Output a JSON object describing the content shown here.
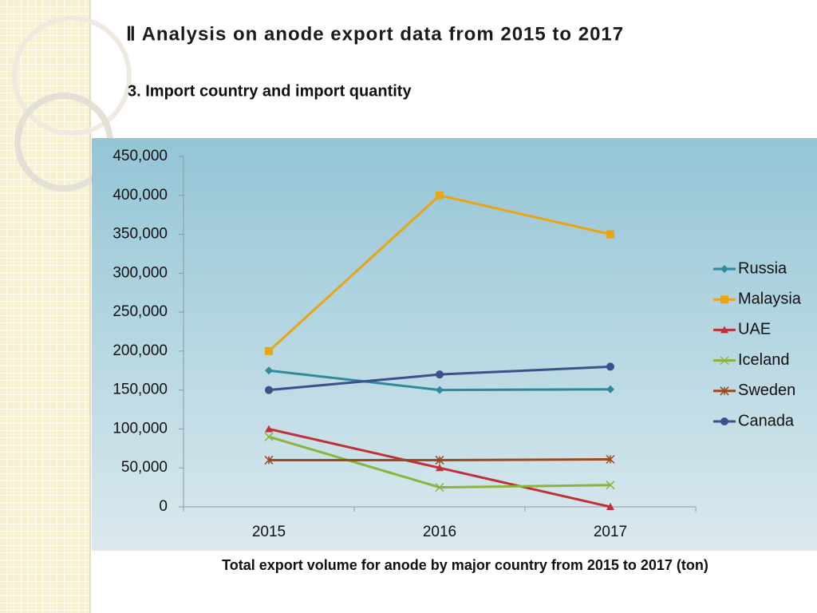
{
  "slide": {
    "title": "Ⅱ Analysis on anode export data from 2015 to 2017",
    "subtitle": "3. Import country and import quantity"
  },
  "chart_data": {
    "type": "line",
    "categories": [
      "2015",
      "2016",
      "2017"
    ],
    "series": [
      {
        "name": "Russia",
        "color": "#2f8a9c",
        "marker": "diamond",
        "values": [
          175000,
          150000,
          151000
        ]
      },
      {
        "name": "Malaysia",
        "color": "#eba414",
        "marker": "square",
        "values": [
          200000,
          400000,
          350000
        ]
      },
      {
        "name": "UAE",
        "color": "#c0303a",
        "marker": "triangle",
        "values": [
          100000,
          50000,
          0
        ]
      },
      {
        "name": "Iceland",
        "color": "#8cb43c",
        "marker": "x",
        "values": [
          90000,
          25000,
          28000
        ]
      },
      {
        "name": "Sweden",
        "color": "#9c4a1e",
        "marker": "star",
        "values": [
          60000,
          60000,
          61000
        ]
      },
      {
        "name": "Canada",
        "color": "#3c508c",
        "marker": "circle",
        "values": [
          150000,
          170000,
          180000
        ]
      }
    ],
    "ylim": [
      0,
      450000
    ],
    "yticks": [
      0,
      {
        "value": 50000,
        "label": "50,000"
      },
      {
        "value": 100000,
        "label": "100,000"
      },
      {
        "value": 150000,
        "label": "150,000"
      },
      {
        "value": 200000,
        "label": "200,000"
      },
      {
        "value": 250000,
        "label": "250,000"
      },
      {
        "value": 300000,
        "label": "300,000"
      },
      {
        "value": 350000,
        "label": "350,000"
      },
      {
        "value": 400000,
        "label": "400,000"
      },
      {
        "value": 450000,
        "label": "450,000"
      }
    ],
    "grid": false,
    "legend": "right",
    "caption": "Total export volume for anode by major country from 2015 to 2017  (ton)"
  }
}
